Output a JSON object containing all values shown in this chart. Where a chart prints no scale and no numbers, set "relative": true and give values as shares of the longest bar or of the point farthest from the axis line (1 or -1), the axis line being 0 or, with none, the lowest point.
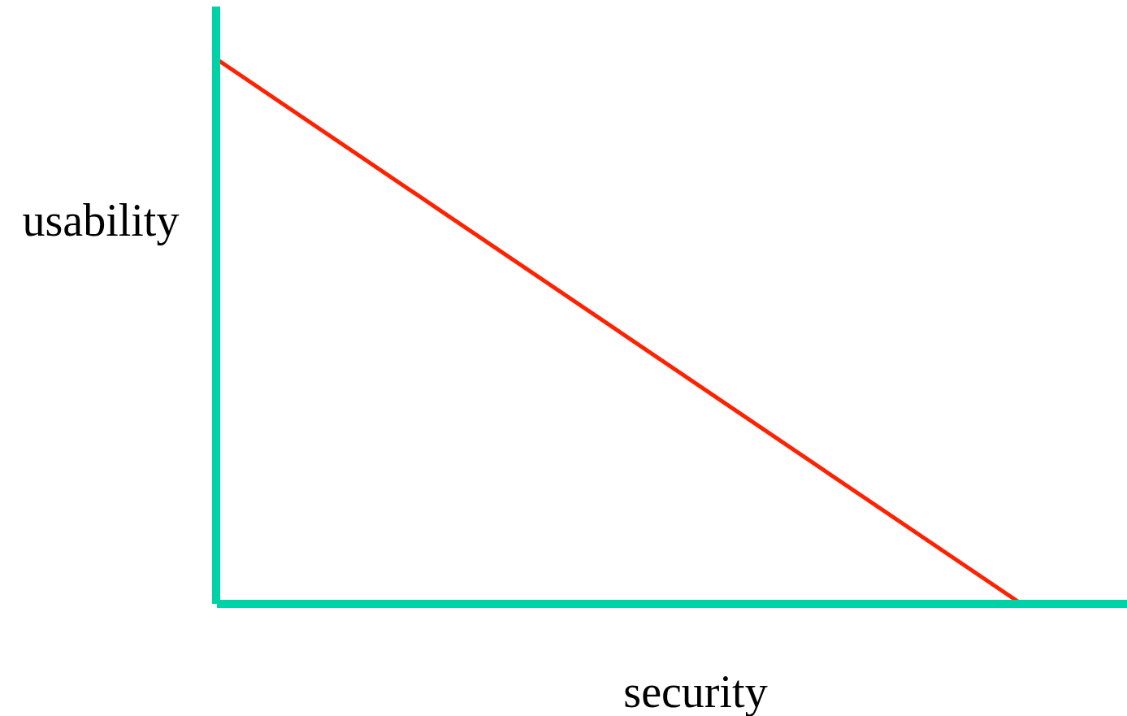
{
  "chart_data": {
    "type": "line",
    "xlabel": "security",
    "ylabel": "usability",
    "relative": true,
    "categories": [
      null,
      null
    ],
    "series": [
      {
        "color": "#ff2200",
        "values": [
          1,
          0
        ]
      }
    ],
    "ref_lines": [
      {
        "axis": "y",
        "value": 0,
        "color": "#00d2a8"
      }
    ]
  }
}
